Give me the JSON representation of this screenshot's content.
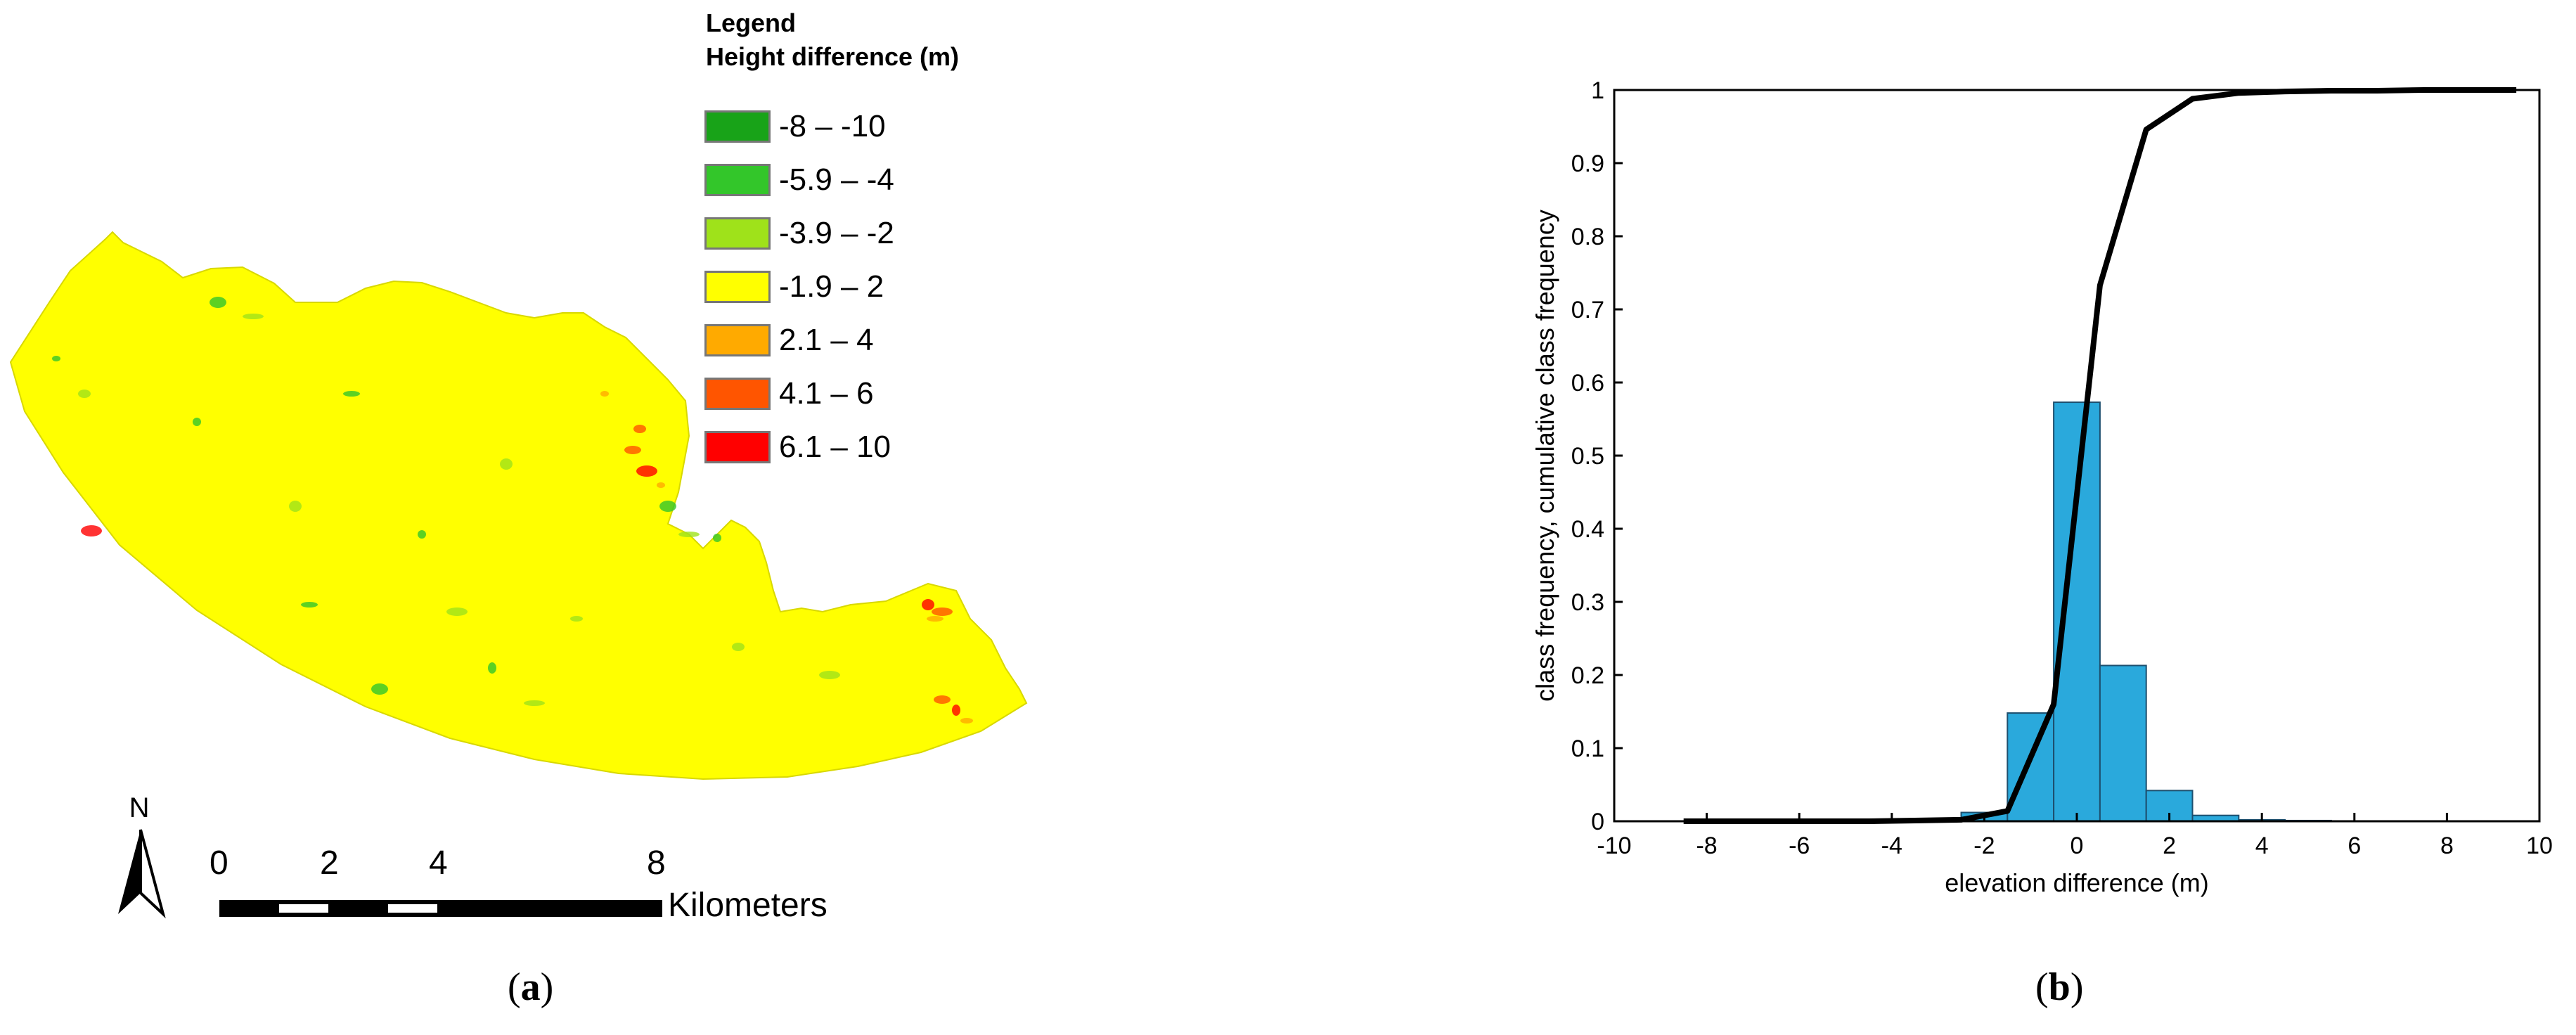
{
  "panel_a": {
    "caption_letter": "a",
    "legend": {
      "title": "Legend",
      "subtitle": "Height difference (m)",
      "items": [
        {
          "label": "-8 – -10",
          "color": "#18a318"
        },
        {
          "label": "-5.9 – -4",
          "color": "#33c62a"
        },
        {
          "label": "-3.9 – -2",
          "color": "#9fe21a"
        },
        {
          "label": "-1.9 – 2",
          "color": "#ffff00"
        },
        {
          "label": "2.1 – 4",
          "color": "#ffaa00"
        },
        {
          "label": "4.1 – 6",
          "color": "#ff5500"
        },
        {
          "label": "6.1 – 10",
          "color": "#ff0000"
        }
      ]
    },
    "north_label": "N",
    "scale_bar": {
      "ticks": [
        "0",
        "2",
        "4",
        "8"
      ],
      "unit": "Kilometers"
    },
    "map_color": "#ffff00"
  },
  "panel_b": {
    "caption_letter": "b",
    "chart_data": {
      "type": "bar",
      "xlabel": "elevation difference (m)",
      "ylabel": "class frequency, cumulative class frequency",
      "xlim": [
        -10,
        10
      ],
      "ylim": [
        0,
        1
      ],
      "xticks": [
        -10,
        -8,
        -6,
        -4,
        -2,
        0,
        2,
        4,
        6,
        8,
        10
      ],
      "yticks": [
        0,
        0.1,
        0.2,
        0.3,
        0.4,
        0.5,
        0.6,
        0.7,
        0.8,
        0.9,
        1
      ],
      "grid": false,
      "bar_color": "#2aa9dc",
      "histogram": {
        "bin_centers": [
          -8,
          -7,
          -6,
          -5,
          -4,
          -3,
          -2,
          -1,
          0,
          1,
          2,
          3,
          4,
          5,
          6,
          7,
          8,
          9
        ],
        "values": [
          0,
          0,
          0,
          0,
          0,
          0.001,
          0.012,
          0.148,
          0.573,
          0.213,
          0.042,
          0.008,
          0.002,
          0.001,
          0,
          0,
          0,
          0
        ],
        "bin_width": 1
      },
      "cumulative": {
        "x": [
          -8.5,
          -7.5,
          -6.5,
          -5.5,
          -4.5,
          -3.5,
          -2.5,
          -1.5,
          -0.5,
          0.5,
          1.5,
          2.5,
          3.5,
          4.5,
          5.5,
          6.5,
          7.5,
          8.5,
          9.5
        ],
        "y": [
          0,
          0,
          0,
          0,
          0,
          0.001,
          0.002,
          0.014,
          0.16,
          0.733,
          0.946,
          0.988,
          0.996,
          0.998,
          0.999,
          0.999,
          1.0,
          1.0,
          1.0
        ],
        "color": "#000000"
      }
    }
  }
}
